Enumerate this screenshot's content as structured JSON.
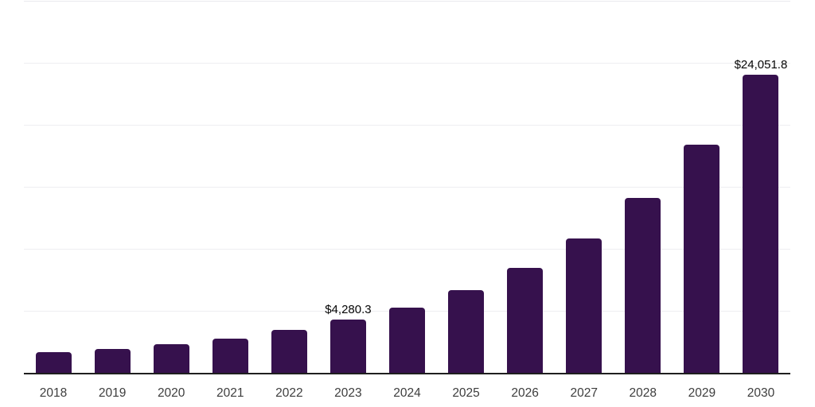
{
  "chart_data": {
    "type": "bar",
    "title": "",
    "xlabel": "",
    "ylabel": "",
    "categories": [
      "2018",
      "2019",
      "2020",
      "2021",
      "2022",
      "2023",
      "2024",
      "2025",
      "2026",
      "2027",
      "2028",
      "2029",
      "2030"
    ],
    "values": [
      1650,
      1950,
      2310,
      2760,
      3460,
      4280.3,
      5270,
      6650,
      8470,
      10840,
      14100,
      18400,
      24051.8
    ],
    "data_labels": [
      null,
      null,
      null,
      null,
      null,
      "$4,280.3",
      null,
      null,
      null,
      null,
      null,
      null,
      "$24,051.8"
    ],
    "ylim": [
      0,
      30000
    ],
    "gridline_values": [
      5000,
      10000,
      15000,
      20000,
      25000,
      30000
    ],
    "grid_on": true,
    "legend_position": "none",
    "colors": {
      "bar": "#36114d",
      "gridline": "#eeeef1",
      "top_gridline": "#e9e9ee",
      "axis_line": "#1f1f1f",
      "tick_label": "#3d3d3d",
      "data_label": "#050505",
      "background": "#ffffff"
    }
  }
}
